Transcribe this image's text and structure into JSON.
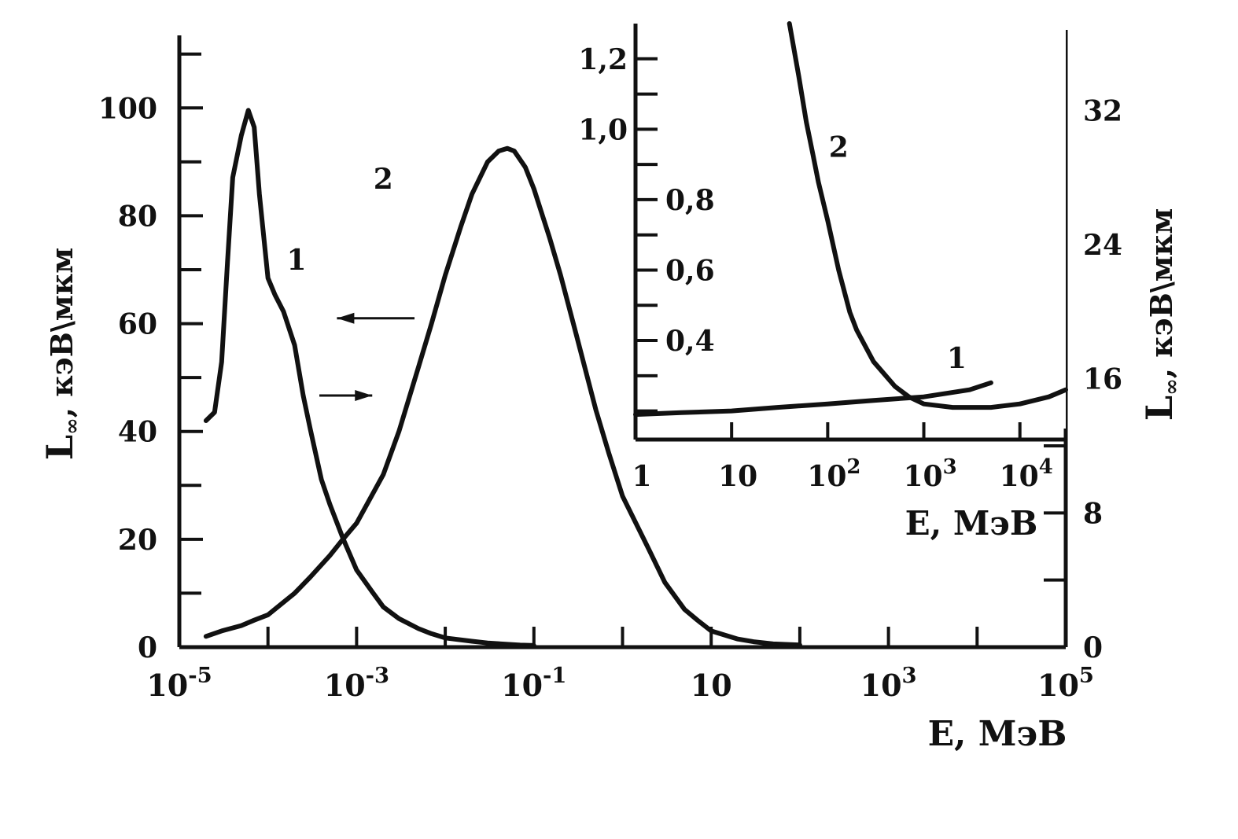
{
  "chart_data": [
    {
      "type": "line",
      "panel": "main",
      "x_scale": "log",
      "x_ticks": [
        {
          "value": 1e-05,
          "base": "10",
          "exp": "-5"
        },
        {
          "value": 0.001,
          "base": "10",
          "exp": "-3"
        },
        {
          "value": 0.1,
          "base": "10",
          "exp": "-1"
        },
        {
          "value": 10,
          "base": "10",
          "exp": ""
        },
        {
          "value": 1000,
          "base": "10",
          "exp": "3"
        },
        {
          "value": 100000,
          "base": "10",
          "exp": "5"
        }
      ],
      "xlim": [
        1e-05,
        100000.0
      ],
      "xlabel": "E, МэВ",
      "y_left": {
        "label_main": "L",
        "label_sub": "∞",
        "label_rest": ", кэВ\\мкм",
        "ylim": [
          0,
          112
        ],
        "ticks": [
          "0",
          "20",
          "40",
          "60",
          "80",
          "100"
        ],
        "tick_values": [
          0,
          20,
          40,
          60,
          80,
          100
        ]
      },
      "y_right": {
        "label_main": "L",
        "label_sub": "∞",
        "label_rest": ", кэВ\\мкм",
        "ylim": [
          0,
          36
        ],
        "ticks": [
          "0",
          "8",
          "16",
          "24",
          "32"
        ],
        "tick_values": [
          0,
          8,
          16,
          24,
          32
        ]
      },
      "series": [
        {
          "name": "1",
          "axis": "right",
          "arrow": "right",
          "x": [
            2e-05,
            2.5e-05,
            3e-05,
            3.5e-05,
            4e-05,
            5e-05,
            6e-05,
            7e-05,
            8e-05,
            0.0001,
            0.00012,
            0.00015,
            0.0002,
            0.00025,
            0.0003,
            0.0004,
            0.0005,
            0.0007,
            0.001,
            0.0015,
            0.002,
            0.003,
            0.005,
            0.007,
            0.01,
            0.02,
            0.03,
            0.05,
            0.07,
            0.1
          ],
          "values": [
            13.5,
            14,
            17,
            23,
            28,
            30.5,
            32,
            31,
            27,
            22,
            21,
            20,
            18,
            15,
            13,
            10,
            8.5,
            6.5,
            4.6,
            3.3,
            2.4,
            1.7,
            1.1,
            0.8,
            0.55,
            0.35,
            0.25,
            0.17,
            0.12,
            0.1
          ]
        },
        {
          "name": "2",
          "axis": "left",
          "arrow": "left",
          "x": [
            2e-05,
            3e-05,
            5e-05,
            7e-05,
            0.0001,
            0.0002,
            0.0003,
            0.0005,
            0.0007,
            0.001,
            0.002,
            0.003,
            0.005,
            0.007,
            0.01,
            0.015,
            0.02,
            0.03,
            0.04,
            0.05,
            0.06,
            0.08,
            0.1,
            0.15,
            0.2,
            0.3,
            0.5,
            0.7,
            1,
            2,
            3,
            5,
            7,
            10,
            20,
            30,
            50,
            100
          ],
          "values": [
            2,
            3,
            4,
            5,
            6,
            10,
            13,
            17,
            20,
            23,
            32,
            40,
            52,
            60,
            69,
            78,
            84,
            90,
            92,
            92.5,
            92,
            89,
            85,
            76,
            69,
            58,
            44,
            36,
            28,
            18,
            12,
            7,
            5,
            3,
            1.5,
            1,
            0.6,
            0.4
          ]
        }
      ],
      "annotations": [
        {
          "text": "1",
          "series": "1"
        },
        {
          "text": "2",
          "series": "2"
        }
      ]
    },
    {
      "type": "line",
      "panel": "inset",
      "x_scale": "log",
      "xlim": [
        1,
        30000
      ],
      "x_ticks": [
        {
          "value": 1,
          "base": "1",
          "exp": ""
        },
        {
          "value": 10,
          "base": "10",
          "exp": ""
        },
        {
          "value": 100,
          "base": "10",
          "exp": "2"
        },
        {
          "value": 1000,
          "base": "10",
          "exp": "3"
        },
        {
          "value": 10000,
          "base": "10",
          "exp": "4"
        }
      ],
      "xlabel": "E, МэВ",
      "ylim": [
        0.15,
        1.3
      ],
      "y_ticks": [
        "0,4",
        "0,6",
        "0,8",
        "1,0",
        "1,2"
      ],
      "y_tick_values": [
        0.4,
        0.6,
        0.8,
        1.0,
        1.2
      ],
      "series": [
        {
          "name": "1",
          "x": [
            1,
            3,
            10,
            30,
            100,
            300,
            1000,
            3000,
            5000
          ],
          "values": [
            0.19,
            0.195,
            0.2,
            0.21,
            0.22,
            0.23,
            0.24,
            0.26,
            0.28
          ]
        },
        {
          "name": "2",
          "x": [
            40,
            50,
            60,
            70,
            80,
            100,
            130,
            170,
            200,
            300,
            500,
            700,
            1000,
            2000,
            3000,
            5000,
            10000,
            20000,
            30000
          ],
          "values": [
            1.3,
            1.15,
            1.02,
            0.93,
            0.85,
            0.74,
            0.6,
            0.48,
            0.43,
            0.34,
            0.27,
            0.24,
            0.22,
            0.21,
            0.21,
            0.21,
            0.22,
            0.24,
            0.26
          ]
        }
      ],
      "annotations": [
        {
          "text": "1",
          "series": "1"
        },
        {
          "text": "2",
          "series": "2"
        }
      ]
    }
  ]
}
